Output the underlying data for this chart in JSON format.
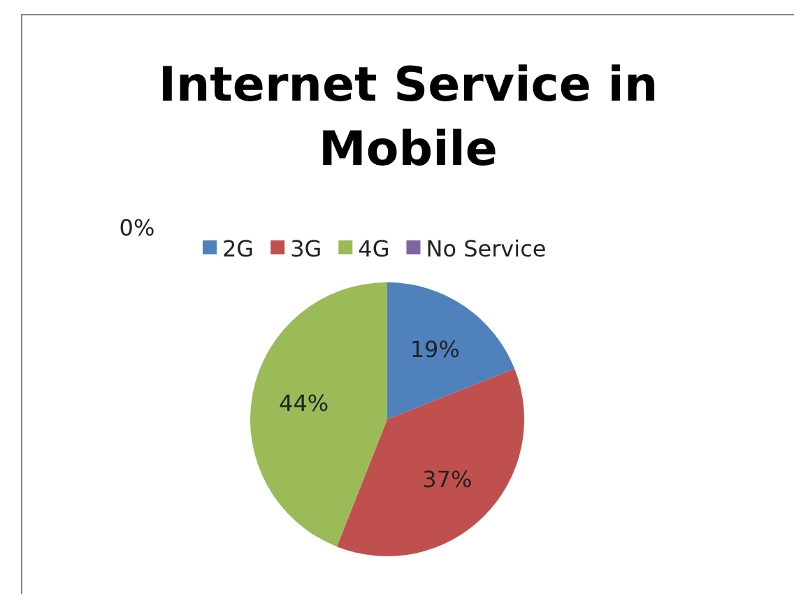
{
  "chart_data": {
    "type": "pie",
    "title": "Internet Service in Mobile",
    "categories": [
      "2G",
      "3G",
      "4G",
      "No Service"
    ],
    "values": [
      19,
      37,
      44,
      0
    ],
    "colors": [
      "#4f81bd",
      "#c0504d",
      "#9bbb59",
      "#8064a2"
    ],
    "value_labels": [
      "19%",
      "37%",
      "44%",
      "0%"
    ],
    "legend": "top"
  }
}
